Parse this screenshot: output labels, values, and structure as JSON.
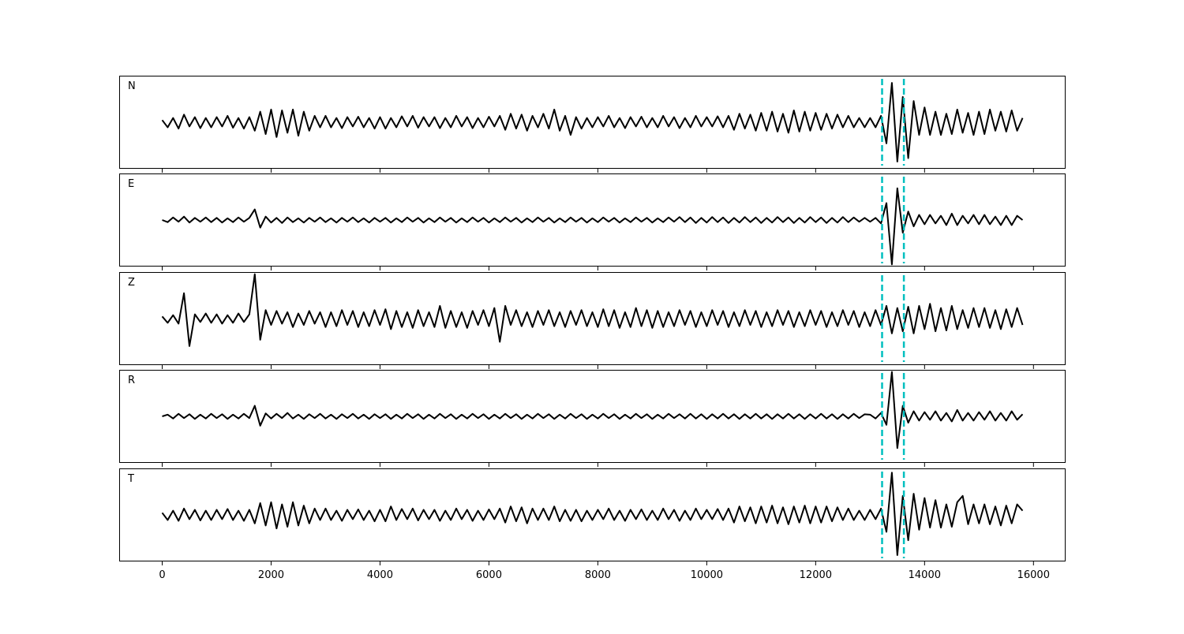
{
  "chart_data": {
    "type": "line",
    "x": [
      0,
      100,
      200,
      300,
      400,
      500,
      600,
      700,
      800,
      900,
      1000,
      1100,
      1200,
      1300,
      1400,
      1500,
      1600,
      1700,
      1800,
      1900,
      2000,
      2100,
      2200,
      2300,
      2400,
      2500,
      2600,
      2700,
      2800,
      2900,
      3000,
      3100,
      3200,
      3300,
      3400,
      3500,
      3600,
      3700,
      3800,
      3900,
      4000,
      4100,
      4200,
      4300,
      4400,
      4500,
      4600,
      4700,
      4800,
      4900,
      5000,
      5100,
      5200,
      5300,
      5400,
      5500,
      5600,
      5700,
      5800,
      5900,
      6000,
      6100,
      6200,
      6300,
      6400,
      6500,
      6600,
      6700,
      6800,
      6900,
      7000,
      7100,
      7200,
      7300,
      7400,
      7500,
      7600,
      7700,
      7800,
      7900,
      8000,
      8100,
      8200,
      8300,
      8400,
      8500,
      8600,
      8700,
      8800,
      8900,
      9000,
      9100,
      9200,
      9300,
      9400,
      9500,
      9600,
      9700,
      9800,
      9900,
      10000,
      10100,
      10200,
      10300,
      10400,
      10500,
      10600,
      10700,
      10800,
      10900,
      11000,
      11100,
      11200,
      11300,
      11400,
      11500,
      11600,
      11700,
      11800,
      11900,
      12000,
      12100,
      12200,
      12300,
      12400,
      12500,
      12600,
      12700,
      12800,
      12900,
      13000,
      13100,
      13200,
      13300,
      13400,
      13500,
      13600,
      13700,
      13800,
      13900,
      14000,
      14100,
      14200,
      14300,
      14400,
      14500,
      14600,
      14700,
      14800,
      14900,
      15000,
      15100,
      15200,
      15300,
      15400,
      15500,
      15600,
      15700,
      15800
    ],
    "series": [
      {
        "name": "N",
        "color": "#000000",
        "values": [
          0.05,
          -0.12,
          0.1,
          -0.15,
          0.18,
          -0.1,
          0.12,
          -0.14,
          0.1,
          -0.12,
          0.12,
          -0.1,
          0.15,
          -0.13,
          0.1,
          -0.15,
          0.12,
          -0.2,
          0.25,
          -0.28,
          0.3,
          -0.35,
          0.28,
          -0.25,
          0.3,
          -0.32,
          0.25,
          -0.2,
          0.15,
          -0.12,
          0.15,
          -0.12,
          0.1,
          -0.14,
          0.12,
          -0.1,
          0.13,
          -0.12,
          0.1,
          -0.15,
          0.12,
          -0.15,
          0.1,
          -0.12,
          0.14,
          -0.1,
          0.15,
          -0.13,
          0.12,
          -0.1,
          0.12,
          -0.14,
          0.1,
          -0.12,
          0.15,
          -0.1,
          0.12,
          -0.14,
          0.1,
          -0.12,
          0.13,
          -0.1,
          0.15,
          -0.18,
          0.2,
          -0.15,
          0.18,
          -0.2,
          0.15,
          -0.12,
          0.2,
          -0.15,
          0.3,
          -0.2,
          0.15,
          -0.3,
          0.12,
          -0.15,
          0.1,
          -0.12,
          0.12,
          -0.1,
          0.15,
          -0.12,
          0.1,
          -0.14,
          0.12,
          -0.1,
          0.13,
          -0.12,
          0.1,
          -0.12,
          0.15,
          -0.1,
          0.12,
          -0.14,
          0.1,
          -0.12,
          0.15,
          -0.1,
          0.12,
          -0.1,
          0.14,
          -0.12,
          0.15,
          -0.18,
          0.2,
          -0.15,
          0.18,
          -0.2,
          0.22,
          -0.2,
          0.25,
          -0.22,
          0.2,
          -0.25,
          0.28,
          -0.22,
          0.25,
          -0.2,
          0.22,
          -0.18,
          0.2,
          -0.15,
          0.18,
          -0.12,
          0.15,
          -0.12,
          0.1,
          -0.12,
          0.1,
          -0.12,
          0.15,
          -0.5,
          0.93,
          -0.93,
          0.6,
          -0.85,
          0.5,
          -0.3,
          0.35,
          -0.3,
          0.25,
          -0.3,
          0.2,
          -0.28,
          0.3,
          -0.25,
          0.22,
          -0.3,
          0.25,
          -0.28,
          0.3,
          -0.2,
          0.25,
          -0.22,
          0.28,
          -0.2,
          0.1
        ]
      },
      {
        "name": "E",
        "color": "#000000",
        "values": [
          0,
          -0.05,
          0.06,
          -0.04,
          0.08,
          -0.06,
          0.05,
          -0.04,
          0.06,
          -0.05,
          0.05,
          -0.06,
          0.04,
          -0.05,
          0.06,
          -0.04,
          0.05,
          0.25,
          -0.18,
          0.08,
          -0.06,
          0.05,
          -0.07,
          0.06,
          -0.05,
          0.04,
          -0.06,
          0.05,
          -0.04,
          0.06,
          -0.05,
          0.04,
          -0.06,
          0.05,
          -0.04,
          0.06,
          -0.05,
          0.04,
          -0.06,
          0.05,
          -0.04,
          0.05,
          -0.06,
          0.04,
          -0.05,
          0.06,
          -0.04,
          0.05,
          -0.06,
          0.04,
          -0.05,
          0.06,
          -0.04,
          0.05,
          -0.06,
          0.04,
          -0.05,
          0.06,
          -0.04,
          0.05,
          -0.06,
          0.04,
          -0.05,
          0.06,
          -0.04,
          0.05,
          -0.06,
          0.04,
          -0.05,
          0.06,
          -0.04,
          0.05,
          -0.06,
          0.04,
          -0.05,
          0.06,
          -0.04,
          0.05,
          -0.06,
          0.04,
          -0.05,
          0.06,
          -0.04,
          0.05,
          -0.06,
          0.04,
          -0.05,
          0.06,
          -0.04,
          0.05,
          -0.06,
          0.04,
          -0.05,
          0.06,
          -0.04,
          0.07,
          -0.05,
          0.06,
          -0.07,
          0.05,
          -0.06,
          0.07,
          -0.05,
          0.06,
          -0.07,
          0.05,
          -0.06,
          0.07,
          -0.05,
          0.06,
          -0.07,
          0.05,
          -0.06,
          0.07,
          -0.05,
          0.06,
          -0.07,
          0.05,
          -0.06,
          0.07,
          -0.05,
          0.06,
          -0.07,
          0.05,
          -0.06,
          0.07,
          -0.05,
          0.06,
          -0.04,
          0.05,
          -0.04,
          0.05,
          -0.08,
          0.4,
          -1.05,
          0.75,
          -0.3,
          0.2,
          -0.15,
          0.12,
          -0.1,
          0.12,
          -0.08,
          0.1,
          -0.12,
          0.15,
          -0.12,
          0.1,
          -0.08,
          0.12,
          -0.1,
          0.12,
          -0.1,
          0.08,
          -0.12,
          0.1,
          -0.12,
          0.1,
          0
        ]
      },
      {
        "name": "Z",
        "color": "#000000",
        "values": [
          0.05,
          -0.1,
          0.08,
          -0.12,
          0.6,
          -0.65,
          0.1,
          -0.08,
          0.12,
          -0.1,
          0.1,
          -0.12,
          0.08,
          -0.1,
          0.12,
          -0.08,
          0.1,
          1.05,
          -0.5,
          0.2,
          -0.15,
          0.18,
          -0.12,
          0.15,
          -0.2,
          0.12,
          -0.15,
          0.18,
          -0.12,
          0.15,
          -0.2,
          0.15,
          -0.18,
          0.2,
          -0.15,
          0.18,
          -0.2,
          0.15,
          -0.18,
          0.2,
          -0.15,
          0.22,
          -0.25,
          0.18,
          -0.2,
          0.15,
          -0.22,
          0.2,
          -0.18,
          0.15,
          -0.2,
          0.3,
          -0.22,
          0.18,
          -0.2,
          0.15,
          -0.22,
          0.18,
          -0.15,
          0.2,
          -0.18,
          0.25,
          -0.55,
          0.3,
          -0.15,
          0.2,
          -0.18,
          0.15,
          -0.2,
          0.18,
          -0.15,
          0.2,
          -0.18,
          0.15,
          -0.2,
          0.18,
          -0.15,
          0.2,
          -0.18,
          0.15,
          -0.2,
          0.22,
          -0.18,
          0.2,
          -0.22,
          0.15,
          -0.2,
          0.25,
          -0.18,
          0.2,
          -0.22,
          0.18,
          -0.2,
          0.15,
          -0.18,
          0.2,
          -0.15,
          0.18,
          -0.2,
          0.15,
          -0.18,
          0.2,
          -0.15,
          0.18,
          -0.2,
          0.15,
          -0.18,
          0.2,
          -0.15,
          0.18,
          -0.2,
          0.15,
          -0.18,
          0.2,
          -0.15,
          0.18,
          -0.2,
          0.15,
          -0.18,
          0.2,
          -0.15,
          0.18,
          -0.2,
          0.15,
          -0.18,
          0.2,
          -0.15,
          0.18,
          -0.2,
          0.15,
          -0.18,
          0.2,
          -0.15,
          0.3,
          -0.35,
          0.25,
          -0.3,
          0.28,
          -0.35,
          0.3,
          -0.25,
          0.35,
          -0.3,
          0.25,
          -0.28,
          0.3,
          -0.25,
          0.2,
          -0.22,
          0.25,
          -0.2,
          0.25,
          -0.22,
          0.2,
          -0.25,
          0.22,
          -0.2,
          0.25,
          -0.15
        ]
      },
      {
        "name": "R",
        "color": "#000000",
        "values": [
          0,
          0.04,
          -0.05,
          0.06,
          -0.04,
          0.05,
          -0.06,
          0.04,
          -0.05,
          0.06,
          -0.04,
          0.05,
          -0.06,
          0.04,
          -0.05,
          0.06,
          -0.04,
          0.25,
          -0.22,
          0.07,
          -0.05,
          0.06,
          -0.04,
          0.08,
          -0.05,
          0.04,
          -0.06,
          0.05,
          -0.04,
          0.06,
          -0.05,
          0.04,
          -0.06,
          0.05,
          -0.04,
          0.06,
          -0.05,
          0.04,
          -0.06,
          0.05,
          -0.04,
          0.05,
          -0.06,
          0.04,
          -0.05,
          0.06,
          -0.04,
          0.05,
          -0.06,
          0.04,
          -0.05,
          0.06,
          -0.04,
          0.05,
          -0.06,
          0.04,
          -0.05,
          0.06,
          -0.04,
          0.05,
          -0.06,
          0.04,
          -0.05,
          0.06,
          -0.04,
          0.05,
          -0.06,
          0.04,
          -0.05,
          0.06,
          -0.04,
          0.05,
          -0.06,
          0.04,
          -0.05,
          0.06,
          -0.04,
          0.05,
          -0.06,
          0.04,
          -0.05,
          0.06,
          -0.04,
          0.05,
          -0.06,
          0.04,
          -0.05,
          0.06,
          -0.04,
          0.05,
          -0.06,
          0.04,
          -0.05,
          0.06,
          -0.04,
          0.05,
          -0.05,
          0.06,
          -0.05,
          0.05,
          -0.06,
          0.05,
          -0.05,
          0.06,
          -0.05,
          0.05,
          -0.06,
          0.05,
          -0.05,
          0.06,
          -0.05,
          0.05,
          -0.06,
          0.05,
          -0.05,
          0.06,
          -0.05,
          0.05,
          -0.06,
          0.05,
          -0.05,
          0.06,
          -0.05,
          0.05,
          -0.06,
          0.05,
          -0.05,
          0.06,
          -0.04,
          0.05,
          0.04,
          -0.05,
          0.08,
          -0.2,
          1.05,
          -0.75,
          0.25,
          -0.15,
          0.12,
          -0.1,
          0.1,
          -0.08,
          0.12,
          -0.1,
          0.08,
          -0.12,
          0.15,
          -0.1,
          0.08,
          -0.1,
          0.1,
          -0.08,
          0.12,
          -0.1,
          0.08,
          -0.1,
          0.12,
          -0.08,
          0.05
        ]
      },
      {
        "name": "T",
        "color": "#000000",
        "values": [
          0.05,
          -0.12,
          0.1,
          -0.14,
          0.15,
          -0.1,
          0.12,
          -0.13,
          0.1,
          -0.12,
          0.12,
          -0.1,
          0.14,
          -0.12,
          0.1,
          -0.14,
          0.12,
          -0.2,
          0.28,
          -0.25,
          0.3,
          -0.32,
          0.25,
          -0.28,
          0.3,
          -0.25,
          0.22,
          -0.2,
          0.15,
          -0.12,
          0.15,
          -0.12,
          0.1,
          -0.14,
          0.12,
          -0.1,
          0.13,
          -0.12,
          0.1,
          -0.15,
          0.12,
          -0.15,
          0.2,
          -0.12,
          0.14,
          -0.1,
          0.15,
          -0.13,
          0.12,
          -0.1,
          0.12,
          -0.14,
          0.1,
          -0.12,
          0.15,
          -0.1,
          0.12,
          -0.14,
          0.1,
          -0.12,
          0.13,
          -0.1,
          0.15,
          -0.18,
          0.2,
          -0.15,
          0.18,
          -0.2,
          0.15,
          -0.12,
          0.15,
          -0.12,
          0.2,
          -0.15,
          0.12,
          -0.14,
          0.12,
          -0.15,
          0.1,
          -0.12,
          0.12,
          -0.1,
          0.15,
          -0.12,
          0.1,
          -0.14,
          0.12,
          -0.1,
          0.13,
          -0.12,
          0.1,
          -0.12,
          0.15,
          -0.1,
          0.12,
          -0.14,
          0.1,
          -0.12,
          0.15,
          -0.1,
          0.12,
          -0.1,
          0.14,
          -0.12,
          0.15,
          -0.18,
          0.2,
          -0.15,
          0.18,
          -0.2,
          0.2,
          -0.18,
          0.22,
          -0.2,
          0.18,
          -0.22,
          0.2,
          -0.18,
          0.22,
          -0.2,
          0.2,
          -0.18,
          0.2,
          -0.15,
          0.18,
          -0.12,
          0.15,
          -0.12,
          0.1,
          -0.12,
          0.12,
          -0.1,
          0.15,
          -0.4,
          1.0,
          -0.95,
          0.45,
          -0.6,
          0.5,
          -0.35,
          0.4,
          -0.3,
          0.35,
          -0.3,
          0.25,
          -0.28,
          0.3,
          0.45,
          -0.22,
          0.25,
          -0.2,
          0.25,
          -0.22,
          0.2,
          -0.25,
          0.22,
          -0.2,
          0.25,
          0.1
        ]
      }
    ],
    "xlim": [
      -790,
      16590
    ],
    "ylim": [
      -1.1,
      1.1
    ],
    "xticks": [
      0,
      2000,
      4000,
      6000,
      8000,
      10000,
      12000,
      14000,
      16000
    ],
    "vlines": {
      "values": [
        13220,
        13620
      ],
      "color": "#00bfbf"
    }
  }
}
